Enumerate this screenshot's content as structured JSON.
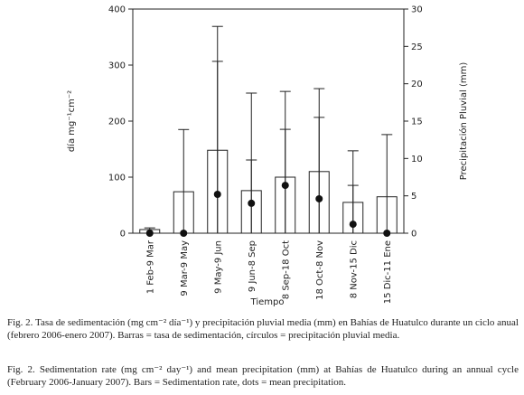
{
  "chart_data": {
    "type": "bar-dot",
    "categories": [
      "1 Feb-9 Mar",
      "9 Mar-9 May",
      "9 May-9 Jun",
      "9 Jun-8 Sep",
      "8 Sep-18 Oct",
      "18 Oct-8 Nov",
      "8 Nov-15 Dic",
      "15 Dic-11 Ene"
    ],
    "x_label": "Tiempo",
    "y_label": "día mg⁻¹cm⁻²",
    "y2_label": "Precipitación Pluvial (mm)",
    "ylim": [
      0,
      400
    ],
    "yticks": [
      0,
      100,
      200,
      300,
      400
    ],
    "y2lim": [
      0,
      30
    ],
    "y2ticks": [
      0,
      5,
      10,
      15,
      20,
      25,
      30
    ],
    "series": [
      {
        "kind": "bar",
        "color": "#ffffff",
        "values": [
          6.5,
          74,
          148,
          76,
          100,
          110,
          55,
          65
        ],
        "errors": [
          3,
          111,
          221,
          174,
          153,
          148,
          92,
          111
        ]
      },
      {
        "kind": "dot",
        "axis": "y2",
        "color": "#111111",
        "values": [
          0,
          0,
          5.2,
          4.0,
          6.4,
          4.6,
          1.2,
          0
        ],
        "errors": [
          0,
          0,
          17.8,
          5.8,
          7.5,
          10.9,
          5.2,
          0
        ]
      }
    ]
  },
  "captions": [
    "Fig. 2. Tasa de sedimentación (mg cm⁻² día⁻¹) y precipitación pluvial media (mm) en Bahías de Huatulco durante un ciclo anual (febrero 2006-enero 2007). Barras = tasa de sedimentación, círculos = precipitación pluvial media.",
    "Fig. 2. Sedimentation rate (mg cm⁻² day⁻¹) and mean precipitation (mm) at Bahías de Huatulco during an annual cycle (February 2006-January 2007). Bars = Sedimentation rate, dots = mean precipitation."
  ]
}
